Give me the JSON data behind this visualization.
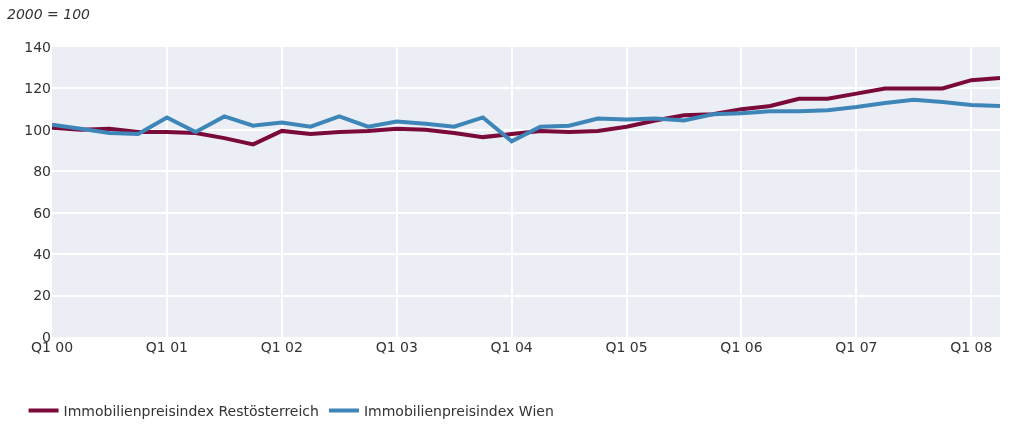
{
  "chart_data": {
    "type": "line",
    "annotations": [
      "2000 = 100"
    ],
    "categories": [
      "Q1 00",
      null,
      null,
      null,
      "Q1 01",
      null,
      null,
      null,
      "Q1 02",
      null,
      null,
      null,
      "Q1 03",
      null,
      null,
      null,
      "Q1 04",
      null,
      null,
      null,
      "Q1 05",
      null,
      null,
      null,
      "Q1 06",
      null,
      null,
      null,
      "Q1 07",
      null,
      null,
      null,
      "Q1 08",
      null
    ],
    "ylim": [
      0,
      140
    ],
    "yticks": [
      0,
      20,
      40,
      60,
      80,
      100,
      120,
      140
    ],
    "series": [
      {
        "name": "Immobilienpreisindex Restösterreich",
        "color": "#7a0a3a",
        "values": [
          101,
          100,
          100.5,
          99,
          99,
          98.5,
          96,
          93,
          99.5,
          98,
          99,
          99.5,
          100.5,
          100,
          98.5,
          96.5,
          98,
          99.5,
          99,
          99.5,
          101.5,
          104.5,
          107,
          107.5,
          110,
          111.5,
          115,
          115,
          117.5,
          120,
          120,
          120,
          124,
          125
        ]
      },
      {
        "name": "Immobilienpreisindex Wien",
        "color": "#3f86b8",
        "values": [
          102.5,
          100.5,
          98.5,
          98,
          106,
          99,
          106.5,
          102,
          103.5,
          101.5,
          106.5,
          101.5,
          104,
          103,
          101.5,
          106,
          94.5,
          101.5,
          102,
          105.5,
          105,
          105.5,
          104.5,
          107.5,
          108,
          109,
          109,
          109.5,
          111,
          113,
          114.5,
          113.5,
          112,
          111.5
        ]
      }
    ],
    "grid": true,
    "legend": "bottom left",
    "marker": "none",
    "line_style": "solid"
  }
}
